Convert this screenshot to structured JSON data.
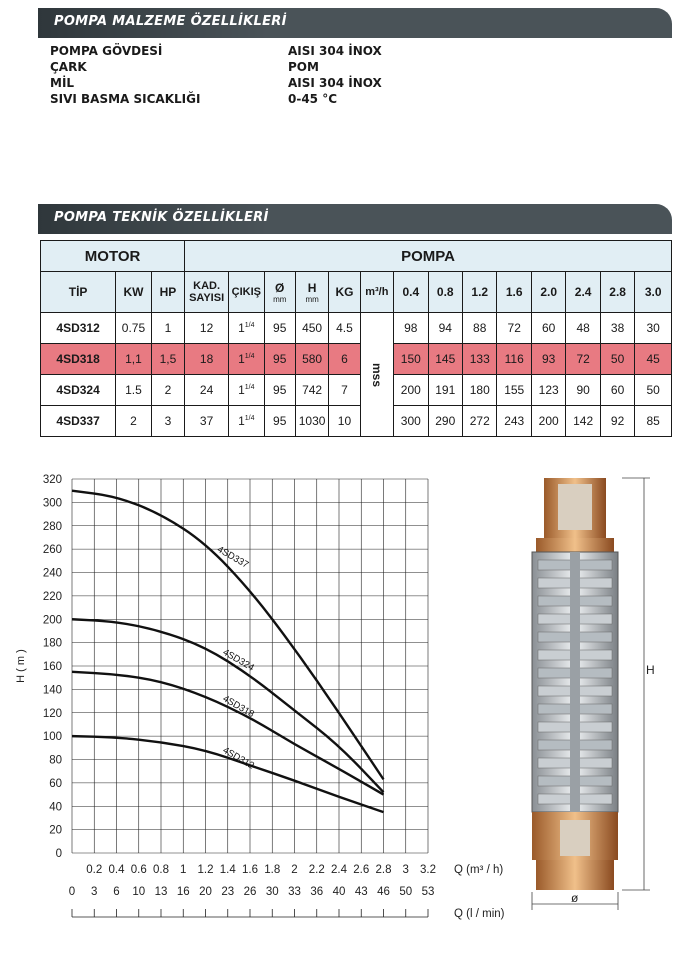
{
  "section1": {
    "title": "POMPA MALZEME ÖZELLİKLERİ"
  },
  "materials": [
    {
      "key": "POMPA GÖVDESİ",
      "value": "AISI 304 İNOX"
    },
    {
      "key": "ÇARK",
      "value": "POM"
    },
    {
      "key": "MİL",
      "value": "AISI 304 İNOX"
    },
    {
      "key": "SIVI BASMA SICAKLIĞI",
      "value": "0-45 °C"
    }
  ],
  "section2": {
    "title": "POMPA TEKNİK ÖZELLİKLERİ"
  },
  "table": {
    "group_motor": "MOTOR",
    "group_pompa": "POMPA",
    "h_tip": "TİP",
    "h_kw": "KW",
    "h_hp": "HP",
    "h_kad": "KAD. SAYISI",
    "h_cikis": "ÇIKIŞ",
    "h_dia": "Ø",
    "h_dia_unit": "mm",
    "h_h": "H",
    "h_h_unit": "mm",
    "h_kg": "KG",
    "h_flow": "m³/h",
    "flows": [
      "0.4",
      "0.8",
      "1.2",
      "1.6",
      "2.0",
      "2.4",
      "2.8",
      "3.0"
    ],
    "mss": "mss",
    "rows": [
      {
        "tip": "4SD312",
        "kw": "0.75",
        "hp": "1",
        "kad": "12",
        "cikis": "1",
        "cikis_sup": "1/4",
        "dia": "95",
        "h": "450",
        "kg": "4.5",
        "vals": [
          "98",
          "94",
          "88",
          "72",
          "60",
          "48",
          "38",
          "30"
        ]
      },
      {
        "tip": "4SD318",
        "kw": "1,1",
        "hp": "1,5",
        "kad": "18",
        "cikis": "1",
        "cikis_sup": "1/4",
        "dia": "95",
        "h": "580",
        "kg": "6",
        "vals": [
          "150",
          "145",
          "133",
          "116",
          "93",
          "72",
          "50",
          "45"
        ]
      },
      {
        "tip": "4SD324",
        "kw": "1.5",
        "hp": "2",
        "kad": "24",
        "cikis": "1",
        "cikis_sup": "1/4",
        "dia": "95",
        "h": "742",
        "kg": "7",
        "vals": [
          "200",
          "191",
          "180",
          "155",
          "123",
          "90",
          "60",
          "50"
        ]
      },
      {
        "tip": "4SD337",
        "kw": "2",
        "hp": "3",
        "kad": "37",
        "cikis": "1",
        "cikis_sup": "1/4",
        "dia": "95",
        "h": "1030",
        "kg": "10",
        "vals": [
          "300",
          "290",
          "272",
          "243",
          "200",
          "142",
          "92",
          "85"
        ]
      }
    ]
  },
  "chart_data": {
    "type": "line",
    "ylabel": "H ( m )",
    "xlabel_q1": "Q (m³ / h)",
    "xlabel_q2": "Q (l / min)",
    "ylim": [
      0,
      320
    ],
    "xlim": [
      0,
      3.2
    ],
    "y_ticks": [
      0,
      20,
      40,
      60,
      80,
      100,
      120,
      140,
      160,
      180,
      200,
      220,
      240,
      260,
      280,
      300,
      320
    ],
    "x_ticks_m3h": [
      "0.2",
      "0.4",
      "0.6",
      "0.8",
      "1",
      "1.2",
      "1.4",
      "1.6",
      "1.8",
      "2",
      "2.2",
      "2.4",
      "2.6",
      "2.8",
      "3",
      "3.2"
    ],
    "x_ticks_lmin": [
      "0",
      "3",
      "6",
      "10",
      "13",
      "16",
      "20",
      "23",
      "26",
      "30",
      "33",
      "36",
      "40",
      "43",
      "46",
      "50",
      "53"
    ],
    "grid": true,
    "series": [
      {
        "name": "4SD337",
        "x": [
          0,
          0.4,
          0.8,
          1.2,
          1.6,
          2.0,
          2.4,
          2.8
        ],
        "y": [
          310,
          305,
          290,
          265,
          225,
          175,
          120,
          63
        ]
      },
      {
        "name": "4SD324",
        "x": [
          0,
          0.4,
          0.8,
          1.2,
          1.6,
          2.0,
          2.4,
          2.8
        ],
        "y": [
          200,
          198,
          190,
          176,
          152,
          122,
          92,
          52
        ]
      },
      {
        "name": "4SD318",
        "x": [
          0,
          0.4,
          0.8,
          1.2,
          1.6,
          2.0,
          2.4,
          2.8
        ],
        "y": [
          155,
          153,
          147,
          134,
          116,
          93,
          72,
          50
        ]
      },
      {
        "name": "4SD312",
        "x": [
          0,
          0.4,
          0.8,
          1.2,
          1.6,
          2.0,
          2.4,
          2.8
        ],
        "y": [
          100,
          99,
          95,
          88,
          75,
          62,
          48,
          35
        ]
      }
    ]
  },
  "pump_labels": {
    "height": "H",
    "diameter": "ø"
  }
}
